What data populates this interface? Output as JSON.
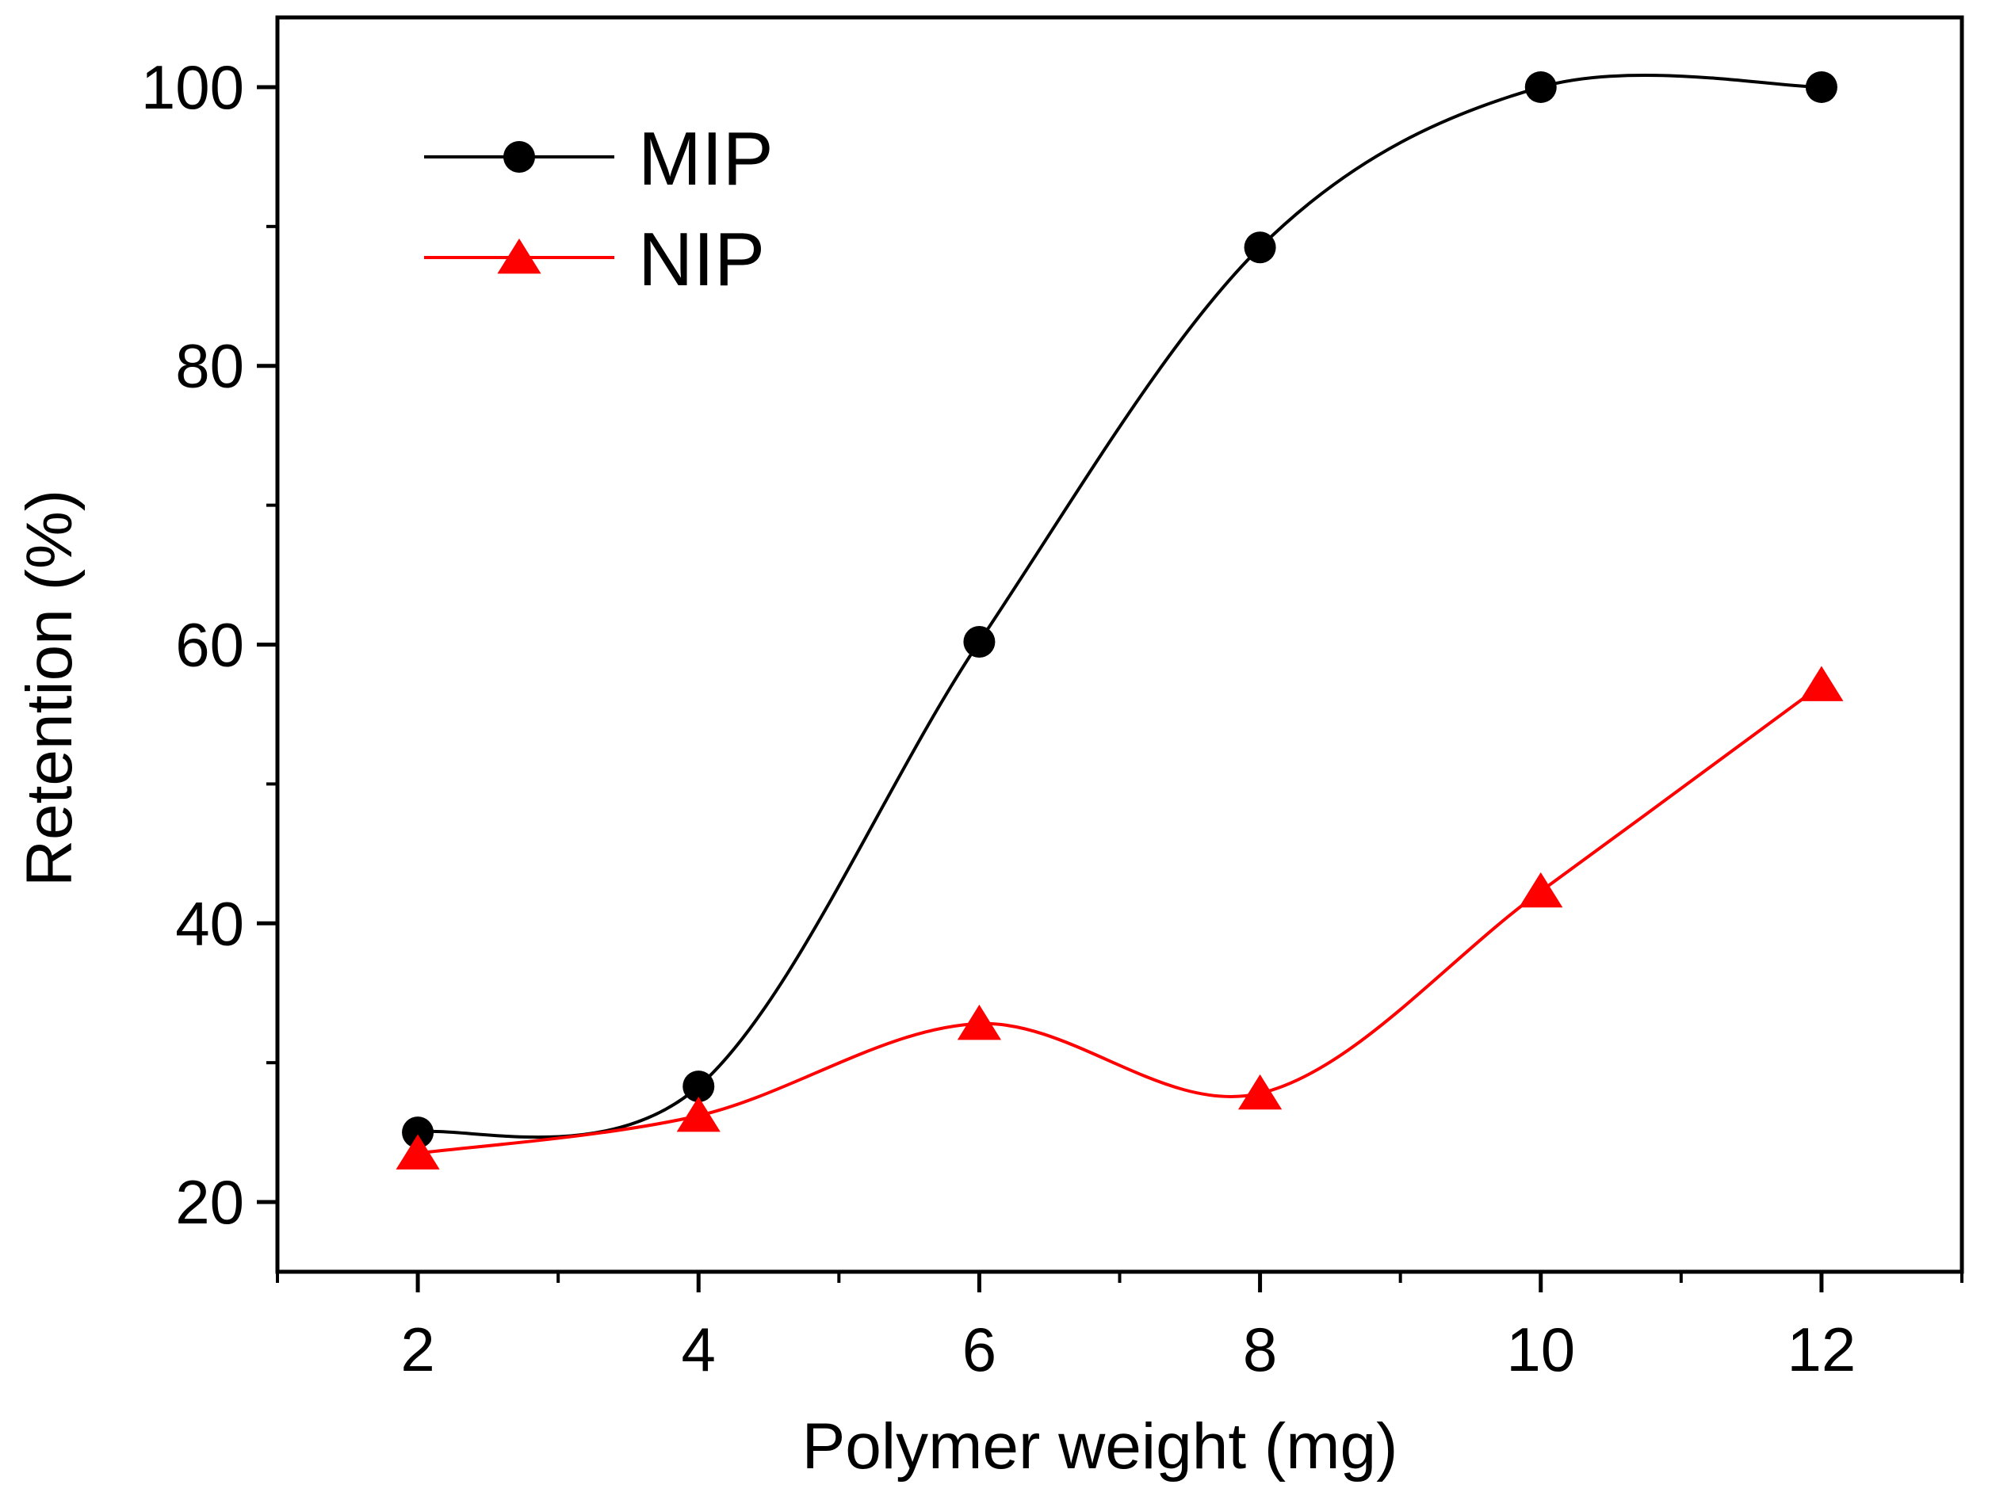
{
  "chart_data": {
    "type": "line",
    "title": "",
    "xlabel": "Polymer weight (mg)",
    "ylabel": "Retention (%)",
    "x": [
      2,
      4,
      6,
      8,
      10,
      12
    ],
    "xlim": [
      1,
      13
    ],
    "ylim": [
      15,
      105
    ],
    "xticks": [
      "2",
      "4",
      "6",
      "8",
      "10",
      "12"
    ],
    "yticks": [
      "20",
      "40",
      "60",
      "80",
      "100"
    ],
    "grid": false,
    "legend_position": "top-left",
    "series": [
      {
        "name": "MIP",
        "values": [
          25,
          28.3,
          60.2,
          88.5,
          100,
          100
        ],
        "color": "#000000",
        "marker": "circle",
        "marker_color": "#000000"
      },
      {
        "name": "NIP",
        "values": [
          23.5,
          26.2,
          32.8,
          27.8,
          42.3,
          57.1
        ],
        "color": "#ff0000",
        "marker": "triangle",
        "marker_color": "#ff0000"
      }
    ]
  }
}
